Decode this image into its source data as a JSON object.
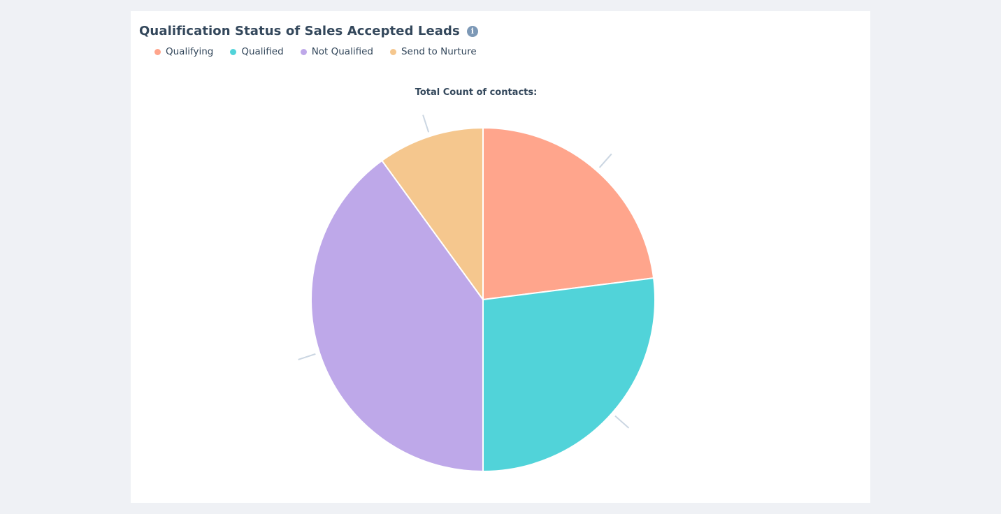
{
  "card": {
    "title": "Qualification Status of Sales Accepted Leads",
    "info_icon": "info-icon"
  },
  "chart_data": {
    "type": "pie",
    "title": "Total Count of contacts:",
    "legend_position": "top-left",
    "slices": [
      {
        "label": "Qualifying",
        "value": 23,
        "color": "#ffa58c"
      },
      {
        "label": "Qualified",
        "value": 27,
        "color": "#51d3d9"
      },
      {
        "label": "Not Qualified",
        "value": 40,
        "color": "#bea8e9"
      },
      {
        "label": "Send to Nurture",
        "value": 10,
        "color": "#f5c78e"
      }
    ]
  }
}
